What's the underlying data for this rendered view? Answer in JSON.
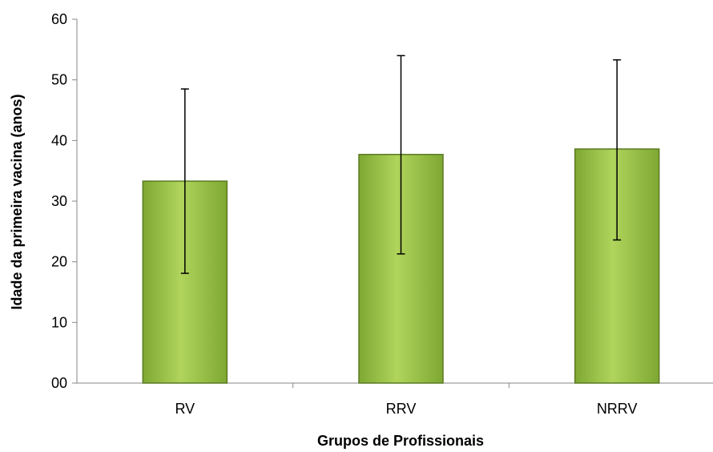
{
  "chart_data": {
    "type": "bar",
    "title": "",
    "xlabel": "Grupos de Profissionais",
    "ylabel": "Idade da primeira vacina (anos)",
    "categories": [
      "RV",
      "RRV",
      "NRRV"
    ],
    "values": [
      33.3,
      37.7,
      38.6
    ],
    "error_bars": [
      {
        "low": 18.1,
        "high": 48.5
      },
      {
        "low": 21.3,
        "high": 54.0
      },
      {
        "low": 23.6,
        "high": 53.3
      }
    ],
    "ylim": [
      0,
      60
    ],
    "yticks": [
      "00",
      "10",
      "20",
      "30",
      "40",
      "50",
      "60"
    ],
    "ytick_values": [
      0,
      10,
      20,
      30,
      40,
      50,
      60
    ],
    "grid": false,
    "legend": "none",
    "bar_color": "#8fbd3c",
    "bar_edge_color": "#5a7a22"
  }
}
